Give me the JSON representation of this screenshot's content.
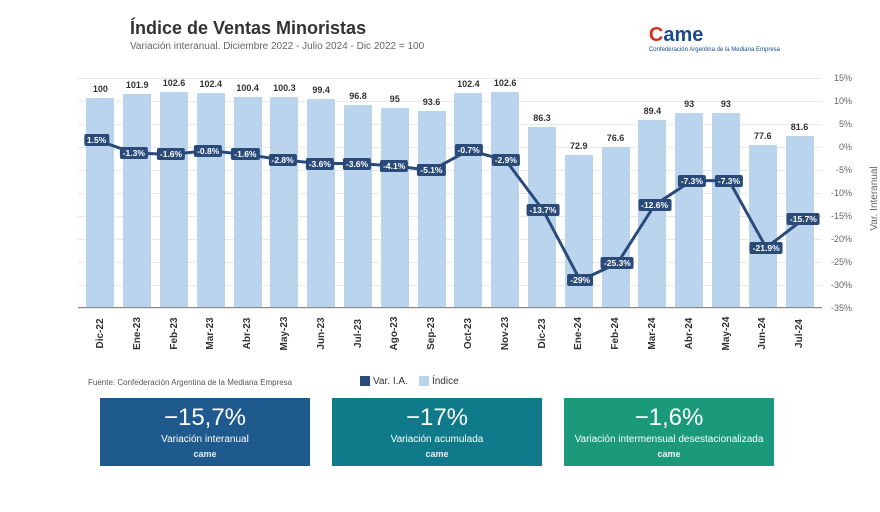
{
  "title": "Índice de Ventas Minoristas",
  "subtitle": "Variación interanual. Diciembre 2022 - Julio 2024 - Dic 2022 = 100",
  "logo_text": "ame",
  "logo_prefix": "C",
  "logo_subtext": "Confederación Argentina de la Mediana Empresa",
  "source": "Fuente: Confederación Argentina de la Mediana Empresa",
  "legend": {
    "line": "Var. I.A.",
    "bar": "Índice"
  },
  "bar_axis": {
    "min": 0,
    "max": 110
  },
  "line_axis": {
    "min": -35,
    "max": 15,
    "ticks": [
      15,
      10,
      5,
      0,
      -5,
      -10,
      -15,
      -20,
      -25,
      -30,
      -35
    ],
    "label": "Var. Interanual"
  },
  "categories": [
    "Dic-22",
    "Ene-23",
    "Feb-23",
    "Mar-23",
    "Abr-23",
    "May-23",
    "Jun-23",
    "Jul-23",
    "Ago-23",
    "Sep-23",
    "Oct-23",
    "Nov-23",
    "Dic-23",
    "Ene-24",
    "Feb-24",
    "Mar-24",
    "Abr-24",
    "May-24",
    "Jun-24",
    "Jul-24"
  ],
  "bar_values": [
    100,
    101.9,
    102.6,
    102.4,
    100.4,
    100.3,
    99.4,
    96.8,
    95,
    93.6,
    102.4,
    102.6,
    86.3,
    72.9,
    76.6,
    89.4,
    93,
    93,
    77.6,
    81.6
  ],
  "line_values": [
    1.5,
    -1.3,
    -1.6,
    -0.8,
    -1.6,
    -2.8,
    -3.6,
    -3.6,
    -4.1,
    -5.1,
    -0.7,
    -2.9,
    -13.7,
    -29,
    -25.3,
    -12.6,
    -7.3,
    -7.3,
    -21.9,
    -15.7
  ],
  "line_labels": [
    "1.5%",
    "-1.3%",
    "-1.6%",
    "-0.8%",
    "-1.6%",
    "-2.8%",
    "-3.6%",
    "-3.6%",
    "-4.1%",
    "-5.1%",
    "-0.7%",
    "-2.9%",
    "-13.7%",
    "-29%",
    "-25.3%",
    "-12.6%",
    "-7.3%",
    "-7.3%",
    "-21.9%",
    "-15.7%"
  ],
  "colors": {
    "bar": "#b9d4ec",
    "line": "#2a4b7a",
    "grid": "#e8e8e8",
    "text": "#333333"
  },
  "cards": [
    {
      "value": "−15,7%",
      "label": "Variación interanual",
      "bg": "#1e5a8e"
    },
    {
      "value": "−17%",
      "label": "Variación acumulada",
      "bg": "#0f7a8a"
    },
    {
      "value": "−1,6%",
      "label": "Variación intermensual desestacionalizada",
      "bg": "#1a9a7a"
    }
  ],
  "mini_logo": "came"
}
